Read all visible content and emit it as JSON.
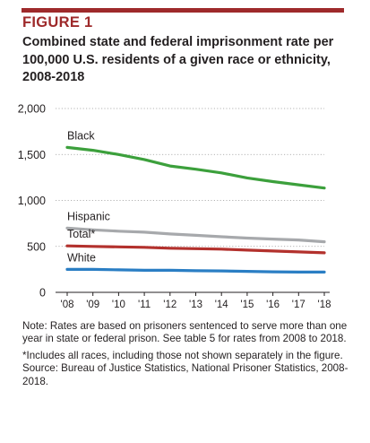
{
  "figure": {
    "label": "FIGURE 1",
    "title": "Combined state and federal imprisonment rate per 100,000 U.S. residents of a given race or ethnicity, 2008-2018"
  },
  "notes": {
    "note": "Note: Rates are based on prisoners sentenced to serve more than one year in state or federal prison. See table 5 for rates from 2008 to 2018.",
    "footnote": "*Includes all races, including those not shown separately in the figure.",
    "source": "Source: Bureau of Justice Statistics, National Prisoner Statistics, 2008-2018."
  },
  "chart_data": {
    "type": "line",
    "title": "Combined state and federal imprisonment rate per 100,000 U.S. residents of a given race or ethnicity, 2008-2018",
    "xlabel": "",
    "ylabel": "",
    "x": [
      "'08",
      "'09",
      "'10",
      "'11",
      "'12",
      "'13",
      "'14",
      "'15",
      "'16",
      "'17",
      "'18"
    ],
    "ylim": [
      0,
      2000
    ],
    "yticks": [
      0,
      500,
      1000,
      1500,
      2000
    ],
    "ytick_labels": [
      "0",
      "500",
      "1,000",
      "1,500",
      "2,000"
    ],
    "grid": "horizontal dotted",
    "legend": "inline labels",
    "series": [
      {
        "name": "Black",
        "color": "#3ca03c",
        "values": [
          1577,
          1545,
          1500,
          1445,
          1375,
          1340,
          1300,
          1245,
          1205,
          1170,
          1135
        ]
      },
      {
        "name": "Hispanic",
        "color": "#a7a9ac",
        "values": [
          700,
          680,
          665,
          655,
          635,
          620,
          605,
          590,
          580,
          570,
          550
        ]
      },
      {
        "name": "Total*",
        "color": "#b3312d",
        "values": [
          505,
          500,
          495,
          490,
          480,
          475,
          470,
          460,
          450,
          440,
          430
        ]
      },
      {
        "name": "White",
        "color": "#2a7ec4",
        "values": [
          250,
          250,
          245,
          240,
          240,
          235,
          233,
          228,
          223,
          220,
          220
        ]
      }
    ]
  }
}
